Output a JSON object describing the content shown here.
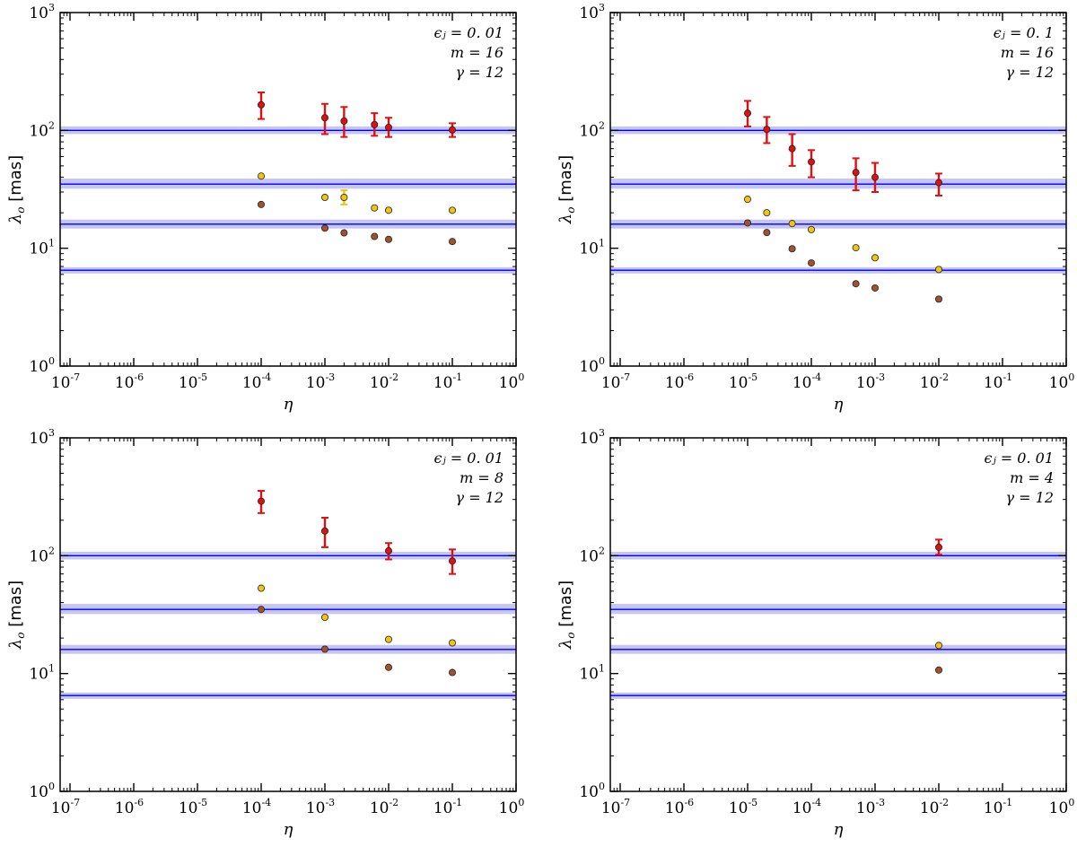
{
  "chart_data": [
    {
      "type": "scatter",
      "xscale": "log",
      "yscale": "log",
      "xlim": [
        7e-08,
        1
      ],
      "ylim": [
        1,
        1000
      ],
      "xlabel": "η",
      "ylabel": "λ",
      "ylabel_sub": "o",
      "ylabel_unit": "[mas]",
      "xticks": [
        {
          "base": "10",
          "exp": "-7",
          "v": 1e-07
        },
        {
          "base": "10",
          "exp": "-6",
          "v": 1e-06
        },
        {
          "base": "10",
          "exp": "-5",
          "v": 1e-05
        },
        {
          "base": "10",
          "exp": "-4",
          "v": 0.0001
        },
        {
          "base": "10",
          "exp": "-3",
          "v": 0.001
        },
        {
          "base": "10",
          "exp": "-2",
          "v": 0.01
        },
        {
          "base": "10",
          "exp": "-1",
          "v": 0.1
        },
        {
          "base": "10",
          "exp": "0",
          "v": 1
        }
      ],
      "yticks": [
        {
          "base": "10",
          "exp": "0",
          "v": 1
        },
        {
          "base": "10",
          "exp": "1",
          "v": 10
        },
        {
          "base": "10",
          "exp": "2",
          "v": 100
        },
        {
          "base": "10",
          "exp": "3",
          "v": 1000
        }
      ],
      "annotations": [
        "ϵⱼ = 0. 01",
        "m = 16",
        "γ = 12"
      ],
      "bands": [
        {
          "center": 100,
          "low": 93,
          "high": 108
        },
        {
          "center": 35,
          "low": 32,
          "high": 39
        },
        {
          "center": 16,
          "low": 14.7,
          "high": 17.5
        },
        {
          "center": 6.5,
          "low": 6.1,
          "high": 6.9
        }
      ],
      "series": [
        {
          "name": "red",
          "color": "#dd1111",
          "points": [
            {
              "x": 0.0001,
              "y": 165,
              "ylow": 125,
              "yhigh": 210
            },
            {
              "x": 0.001,
              "y": 128,
              "ylow": 93,
              "yhigh": 168
            },
            {
              "x": 0.002,
              "y": 120,
              "ylow": 88,
              "yhigh": 158
            },
            {
              "x": 0.006,
              "y": 112,
              "ylow": 90,
              "yhigh": 140
            },
            {
              "x": 0.01,
              "y": 106,
              "ylow": 88,
              "yhigh": 128
            },
            {
              "x": 0.1,
              "y": 101,
              "ylow": 88,
              "yhigh": 115
            }
          ]
        },
        {
          "name": "yellow",
          "color": "#f2c40f",
          "points": [
            {
              "x": 0.0001,
              "y": 41
            },
            {
              "x": 0.001,
              "y": 27
            },
            {
              "x": 0.002,
              "y": 27,
              "ylow": 23.5,
              "yhigh": 31
            },
            {
              "x": 0.006,
              "y": 22
            },
            {
              "x": 0.01,
              "y": 21
            },
            {
              "x": 0.1,
              "y": 21
            }
          ]
        },
        {
          "name": "brown",
          "color": "#a0522d",
          "points": [
            {
              "x": 0.0001,
              "y": 23.5
            },
            {
              "x": 0.001,
              "y": 14.8
            },
            {
              "x": 0.002,
              "y": 13.5
            },
            {
              "x": 0.006,
              "y": 12.6
            },
            {
              "x": 0.01,
              "y": 11.9
            },
            {
              "x": 0.1,
              "y": 11.4
            }
          ]
        }
      ]
    },
    {
      "type": "scatter",
      "xscale": "log",
      "yscale": "log",
      "xlim": [
        7e-08,
        1
      ],
      "ylim": [
        1,
        1000
      ],
      "xlabel": "η",
      "ylabel": "λ",
      "ylabel_sub": "o",
      "ylabel_unit": "[mas]",
      "xticks": [
        {
          "base": "10",
          "exp": "-7",
          "v": 1e-07
        },
        {
          "base": "10",
          "exp": "-6",
          "v": 1e-06
        },
        {
          "base": "10",
          "exp": "-5",
          "v": 1e-05
        },
        {
          "base": "10",
          "exp": "-4",
          "v": 0.0001
        },
        {
          "base": "10",
          "exp": "-3",
          "v": 0.001
        },
        {
          "base": "10",
          "exp": "-2",
          "v": 0.01
        },
        {
          "base": "10",
          "exp": "-1",
          "v": 0.1
        },
        {
          "base": "10",
          "exp": "0",
          "v": 1
        }
      ],
      "yticks": [
        {
          "base": "10",
          "exp": "0",
          "v": 1
        },
        {
          "base": "10",
          "exp": "1",
          "v": 10
        },
        {
          "base": "10",
          "exp": "2",
          "v": 100
        },
        {
          "base": "10",
          "exp": "3",
          "v": 1000
        }
      ],
      "annotations": [
        "ϵⱼ = 0. 1",
        "m = 16",
        "γ = 12"
      ],
      "bands": [
        {
          "center": 100,
          "low": 93,
          "high": 108
        },
        {
          "center": 35,
          "low": 32,
          "high": 39
        },
        {
          "center": 16,
          "low": 14.7,
          "high": 17.5
        },
        {
          "center": 6.5,
          "low": 6.1,
          "high": 6.9
        }
      ],
      "series": [
        {
          "name": "red",
          "color": "#dd1111",
          "points": [
            {
              "x": 1e-05,
              "y": 140,
              "ylow": 108,
              "yhigh": 178
            },
            {
              "x": 2e-05,
              "y": 102,
              "ylow": 78,
              "yhigh": 130
            },
            {
              "x": 5e-05,
              "y": 70,
              "ylow": 50,
              "yhigh": 93
            },
            {
              "x": 0.0001,
              "y": 54,
              "ylow": 40,
              "yhigh": 68
            },
            {
              "x": 0.0005,
              "y": 44,
              "ylow": 31,
              "yhigh": 58
            },
            {
              "x": 0.001,
              "y": 40,
              "ylow": 30,
              "yhigh": 53
            },
            {
              "x": 0.01,
              "y": 36,
              "ylow": 28,
              "yhigh": 43
            }
          ]
        },
        {
          "name": "yellow",
          "color": "#f2c40f",
          "points": [
            {
              "x": 1e-05,
              "y": 26
            },
            {
              "x": 2e-05,
              "y": 20
            },
            {
              "x": 5e-05,
              "y": 16.2
            },
            {
              "x": 0.0001,
              "y": 14.4
            },
            {
              "x": 0.0005,
              "y": 10.1
            },
            {
              "x": 0.001,
              "y": 8.3
            },
            {
              "x": 0.01,
              "y": 6.6
            }
          ]
        },
        {
          "name": "brown",
          "color": "#a0522d",
          "points": [
            {
              "x": 1e-05,
              "y": 16.4
            },
            {
              "x": 2e-05,
              "y": 13.6
            },
            {
              "x": 5e-05,
              "y": 9.9
            },
            {
              "x": 0.0001,
              "y": 7.5
            },
            {
              "x": 0.0005,
              "y": 5.0
            },
            {
              "x": 0.001,
              "y": 4.6
            },
            {
              "x": 0.01,
              "y": 3.7
            }
          ]
        }
      ]
    },
    {
      "type": "scatter",
      "xscale": "log",
      "yscale": "log",
      "xlim": [
        7e-08,
        1
      ],
      "ylim": [
        1,
        1000
      ],
      "xlabel": "η",
      "ylabel": "λ",
      "ylabel_sub": "o",
      "ylabel_unit": "[mas]",
      "xticks": [
        {
          "base": "10",
          "exp": "-7",
          "v": 1e-07
        },
        {
          "base": "10",
          "exp": "-6",
          "v": 1e-06
        },
        {
          "base": "10",
          "exp": "-5",
          "v": 1e-05
        },
        {
          "base": "10",
          "exp": "-4",
          "v": 0.0001
        },
        {
          "base": "10",
          "exp": "-3",
          "v": 0.001
        },
        {
          "base": "10",
          "exp": "-2",
          "v": 0.01
        },
        {
          "base": "10",
          "exp": "-1",
          "v": 0.1
        },
        {
          "base": "10",
          "exp": "0",
          "v": 1
        }
      ],
      "yticks": [
        {
          "base": "10",
          "exp": "0",
          "v": 1
        },
        {
          "base": "10",
          "exp": "1",
          "v": 10
        },
        {
          "base": "10",
          "exp": "2",
          "v": 100
        },
        {
          "base": "10",
          "exp": "3",
          "v": 1000
        }
      ],
      "annotations": [
        "ϵⱼ = 0. 01",
        "m = 8",
        "γ = 12"
      ],
      "bands": [
        {
          "center": 100,
          "low": 93,
          "high": 108
        },
        {
          "center": 35,
          "low": 32,
          "high": 39
        },
        {
          "center": 16,
          "low": 14.7,
          "high": 17.5
        },
        {
          "center": 6.5,
          "low": 6.1,
          "high": 6.9
        }
      ],
      "series": [
        {
          "name": "red",
          "color": "#dd1111",
          "points": [
            {
              "x": 0.0001,
              "y": 290,
              "ylow": 230,
              "yhigh": 355
            },
            {
              "x": 0.001,
              "y": 162,
              "ylow": 118,
              "yhigh": 210
            },
            {
              "x": 0.01,
              "y": 110,
              "ylow": 93,
              "yhigh": 128
            },
            {
              "x": 0.1,
              "y": 90,
              "ylow": 70,
              "yhigh": 113
            }
          ]
        },
        {
          "name": "yellow",
          "color": "#f2c40f",
          "points": [
            {
              "x": 0.0001,
              "y": 53
            },
            {
              "x": 0.001,
              "y": 30
            },
            {
              "x": 0.01,
              "y": 19.5
            },
            {
              "x": 0.1,
              "y": 18.2
            }
          ]
        },
        {
          "name": "brown",
          "color": "#a0522d",
          "points": [
            {
              "x": 0.0001,
              "y": 35
            },
            {
              "x": 0.001,
              "y": 16.1
            },
            {
              "x": 0.01,
              "y": 11.3
            },
            {
              "x": 0.1,
              "y": 10.2
            }
          ]
        }
      ]
    },
    {
      "type": "scatter",
      "xscale": "log",
      "yscale": "log",
      "xlim": [
        7e-08,
        1
      ],
      "ylim": [
        1,
        1000
      ],
      "xlabel": "η",
      "ylabel": "λ",
      "ylabel_sub": "o",
      "ylabel_unit": "[mas]",
      "xticks": [
        {
          "base": "10",
          "exp": "-7",
          "v": 1e-07
        },
        {
          "base": "10",
          "exp": "-6",
          "v": 1e-06
        },
        {
          "base": "10",
          "exp": "-5",
          "v": 1e-05
        },
        {
          "base": "10",
          "exp": "-4",
          "v": 0.0001
        },
        {
          "base": "10",
          "exp": "-3",
          "v": 0.001
        },
        {
          "base": "10",
          "exp": "-2",
          "v": 0.01
        },
        {
          "base": "10",
          "exp": "-1",
          "v": 0.1
        },
        {
          "base": "10",
          "exp": "0",
          "v": 1
        }
      ],
      "yticks": [
        {
          "base": "10",
          "exp": "0",
          "v": 1
        },
        {
          "base": "10",
          "exp": "1",
          "v": 10
        },
        {
          "base": "10",
          "exp": "2",
          "v": 100
        },
        {
          "base": "10",
          "exp": "3",
          "v": 1000
        }
      ],
      "annotations": [
        "ϵⱼ = 0. 01",
        "m = 4",
        "γ = 12"
      ],
      "bands": [
        {
          "center": 100,
          "low": 93,
          "high": 108
        },
        {
          "center": 35,
          "low": 32,
          "high": 39
        },
        {
          "center": 16,
          "low": 14.7,
          "high": 17.5
        },
        {
          "center": 6.5,
          "low": 6.1,
          "high": 6.9
        }
      ],
      "series": [
        {
          "name": "red",
          "color": "#dd1111",
          "points": [
            {
              "x": 0.01,
              "y": 118,
              "ylow": 102,
              "yhigh": 137
            }
          ]
        },
        {
          "name": "yellow",
          "color": "#f2c40f",
          "points": [
            {
              "x": 0.01,
              "y": 17.3
            }
          ]
        },
        {
          "name": "brown",
          "color": "#a0522d",
          "points": [
            {
              "x": 0.01,
              "y": 10.7
            }
          ]
        }
      ]
    }
  ]
}
